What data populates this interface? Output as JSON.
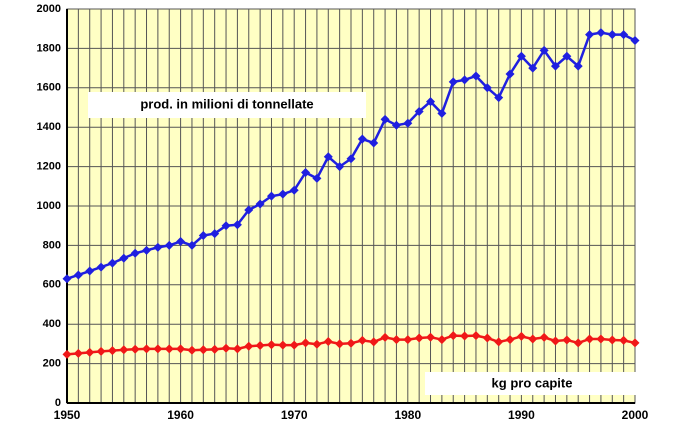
{
  "chart_data": {
    "type": "line",
    "x": [
      1950,
      1951,
      1952,
      1953,
      1954,
      1955,
      1956,
      1957,
      1958,
      1959,
      1960,
      1961,
      1962,
      1963,
      1964,
      1965,
      1966,
      1967,
      1968,
      1969,
      1970,
      1971,
      1972,
      1973,
      1974,
      1975,
      1976,
      1977,
      1978,
      1979,
      1980,
      1981,
      1982,
      1983,
      1984,
      1985,
      1986,
      1987,
      1988,
      1989,
      1990,
      1991,
      1992,
      1993,
      1994,
      1995,
      1996,
      1997,
      1998,
      1999,
      2000
    ],
    "series": [
      {
        "name": "prod. in milioni di tonnellate",
        "color": "#1f1fe0",
        "values": [
          631,
          650,
          670,
          690,
          710,
          735,
          760,
          775,
          790,
          800,
          820,
          800,
          850,
          860,
          900,
          905,
          980,
          1010,
          1050,
          1060,
          1080,
          1170,
          1140,
          1250,
          1200,
          1240,
          1340,
          1320,
          1440,
          1410,
          1420,
          1480,
          1530,
          1470,
          1630,
          1640,
          1660,
          1600,
          1550,
          1670,
          1760,
          1700,
          1790,
          1710,
          1760,
          1710,
          1870,
          1880,
          1870,
          1870,
          1840
        ]
      },
      {
        "name": "kg pro capite",
        "color": "#f01818",
        "values": [
          247,
          252,
          257,
          262,
          266,
          270,
          273,
          275,
          275,
          275,
          275,
          268,
          270,
          272,
          278,
          275,
          288,
          292,
          296,
          294,
          294,
          305,
          298,
          312,
          300,
          303,
          318,
          310,
          333,
          322,
          322,
          330,
          334,
          322,
          342,
          340,
          342,
          330,
          310,
          322,
          338,
          325,
          333,
          315,
          320,
          305,
          325,
          325,
          320,
          318,
          305
        ]
      }
    ],
    "xlim": [
      1950,
      2000
    ],
    "xticks": [
      1950,
      1960,
      1970,
      1980,
      1990,
      2000
    ],
    "ylim": [
      0,
      2000
    ],
    "yticks": [
      0,
      200,
      400,
      600,
      800,
      1000,
      1200,
      1400,
      1600,
      1800,
      2000
    ],
    "grid": true,
    "background": "#ffffc4"
  }
}
